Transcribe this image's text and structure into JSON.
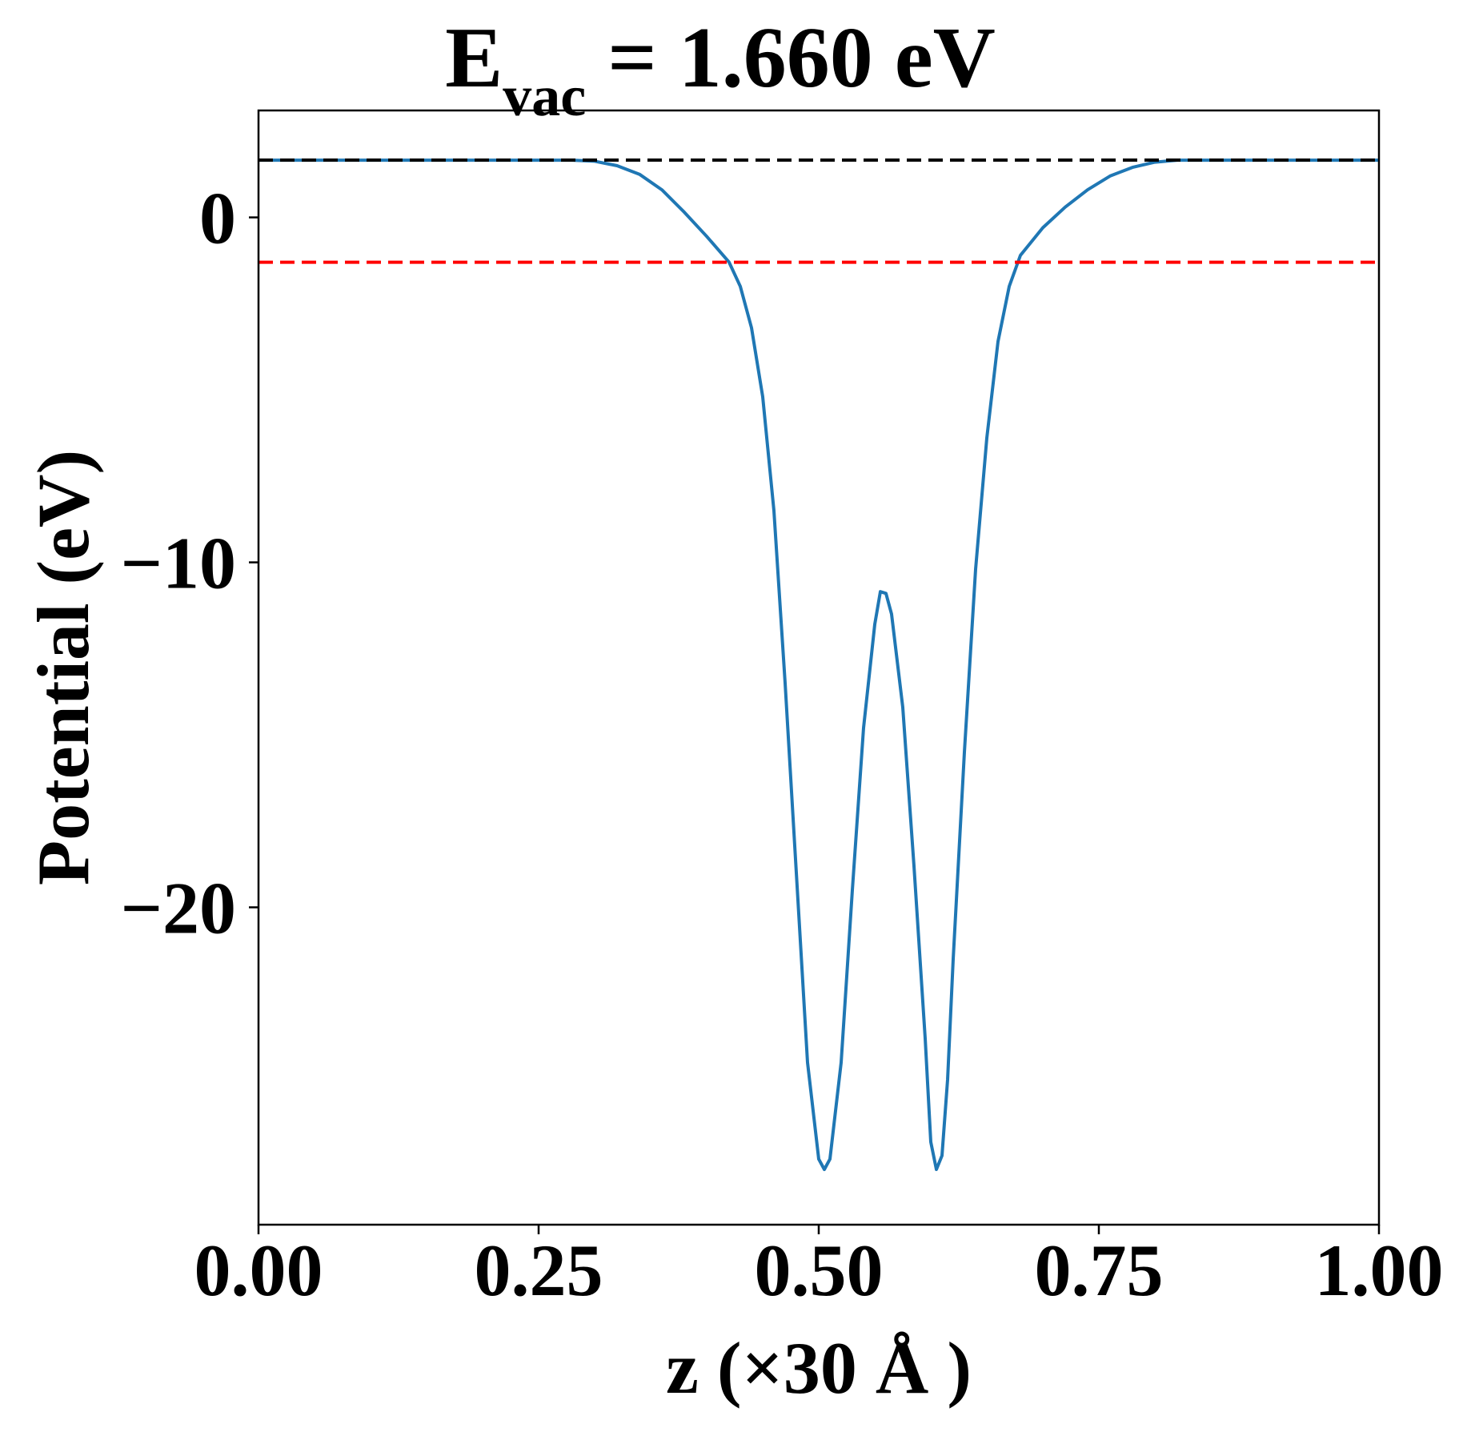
{
  "chart_data": {
    "type": "line",
    "title": {
      "main": "E",
      "subscript": "vac",
      "rest": " = 1.660 eV"
    },
    "xlabel": "z (×30 Å )",
    "ylabel": "Potential (eV)",
    "xlim": [
      0.0,
      1.0
    ],
    "ylim": [
      -29.2,
      3.1
    ],
    "xticks": [
      {
        "value": 0.0,
        "label": "0.00"
      },
      {
        "value": 0.25,
        "label": "0.25"
      },
      {
        "value": 0.5,
        "label": "0.50"
      },
      {
        "value": 0.75,
        "label": "0.75"
      },
      {
        "value": 1.0,
        "label": "1.00"
      }
    ],
    "yticks": [
      {
        "value": 0,
        "label": "0"
      },
      {
        "value": -10,
        "label": "−10"
      },
      {
        "value": -20,
        "label": "−20"
      }
    ],
    "grid": false,
    "series": [
      {
        "color": "#1f77b4",
        "style": "solid",
        "points": [
          [
            0.0,
            1.66
          ],
          [
            0.1,
            1.66
          ],
          [
            0.2,
            1.66
          ],
          [
            0.28,
            1.66
          ],
          [
            0.3,
            1.63
          ],
          [
            0.32,
            1.5
          ],
          [
            0.34,
            1.25
          ],
          [
            0.36,
            0.8
          ],
          [
            0.38,
            0.15
          ],
          [
            0.4,
            -0.55
          ],
          [
            0.42,
            -1.3
          ],
          [
            0.43,
            -2.0
          ],
          [
            0.44,
            -3.2
          ],
          [
            0.45,
            -5.2
          ],
          [
            0.46,
            -8.5
          ],
          [
            0.47,
            -13.5
          ],
          [
            0.48,
            -19.0
          ],
          [
            0.49,
            -24.5
          ],
          [
            0.5,
            -27.3
          ],
          [
            0.505,
            -27.6
          ],
          [
            0.51,
            -27.3
          ],
          [
            0.52,
            -24.5
          ],
          [
            0.53,
            -19.5
          ],
          [
            0.54,
            -14.8
          ],
          [
            0.55,
            -11.8
          ],
          [
            0.555,
            -10.85
          ],
          [
            0.56,
            -10.9
          ],
          [
            0.565,
            -11.5
          ],
          [
            0.575,
            -14.2
          ],
          [
            0.585,
            -18.8
          ],
          [
            0.595,
            -23.8
          ],
          [
            0.6,
            -26.8
          ],
          [
            0.605,
            -27.6
          ],
          [
            0.61,
            -27.2
          ],
          [
            0.615,
            -25.0
          ],
          [
            0.62,
            -21.5
          ],
          [
            0.63,
            -15.5
          ],
          [
            0.64,
            -10.2
          ],
          [
            0.65,
            -6.4
          ],
          [
            0.66,
            -3.6
          ],
          [
            0.67,
            -2.0
          ],
          [
            0.68,
            -1.1
          ],
          [
            0.7,
            -0.3
          ],
          [
            0.72,
            0.3
          ],
          [
            0.74,
            0.8
          ],
          [
            0.76,
            1.2
          ],
          [
            0.78,
            1.45
          ],
          [
            0.8,
            1.6
          ],
          [
            0.82,
            1.66
          ],
          [
            0.9,
            1.66
          ],
          [
            1.0,
            1.66
          ]
        ]
      },
      {
        "color": "#000000",
        "style": "dashed",
        "y": 1.66
      },
      {
        "color": "#ff0000",
        "style": "dashed",
        "y": -1.3
      }
    ]
  }
}
